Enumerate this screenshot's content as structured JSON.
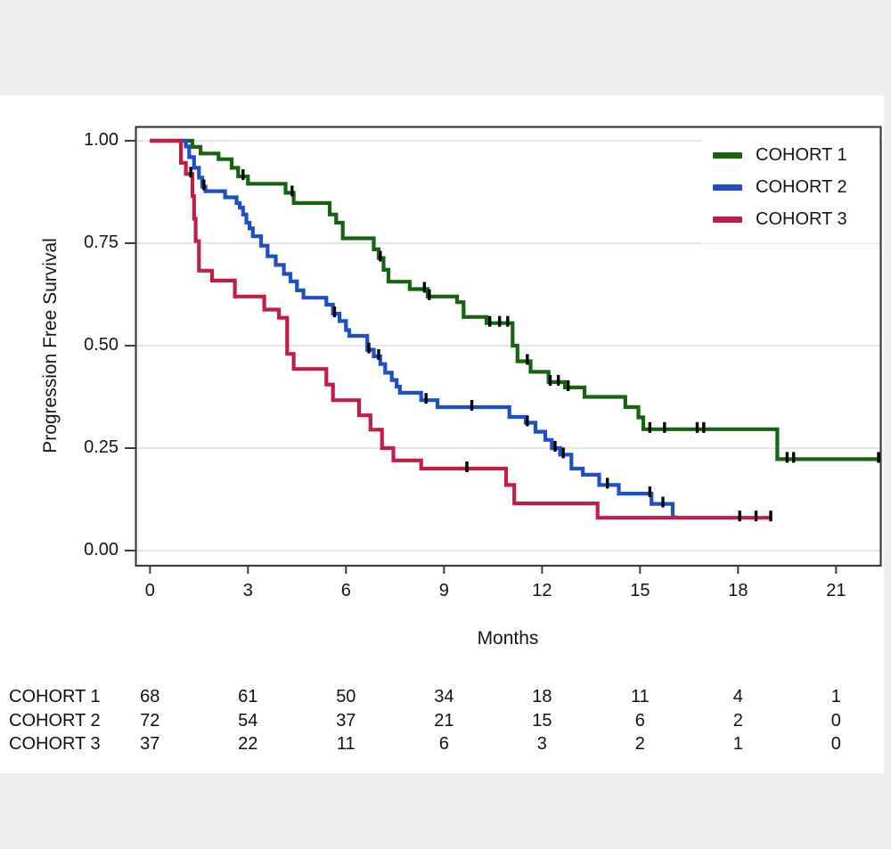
{
  "page": {
    "background": "#ededed",
    "panel_background": "#ffffff"
  },
  "chart_data": {
    "type": "line",
    "subtype": "kaplan-meier-step",
    "title": "",
    "xlabel": "Months",
    "ylabel": "Progression Free Survival",
    "xlim": [
      0,
      22.4
    ],
    "ylim": [
      0,
      1.0
    ],
    "grid": true,
    "grid_color": "#e5e5e5",
    "frame_color": "#3d3d3d",
    "censor_color": "#000000",
    "legend_position": "top-right-inside",
    "x_ticks": [
      0,
      3,
      6,
      9,
      12,
      15,
      18,
      21
    ],
    "x_tick_labels": [
      "0",
      "3",
      "6",
      "9",
      "12",
      "15",
      "18",
      "21"
    ],
    "y_ticks": [
      1.0,
      0.75,
      0.5,
      0.25,
      0.0
    ],
    "y_tick_labels": [
      "1.00",
      "0.75",
      "0.50",
      "0.25",
      "0.00"
    ],
    "series": [
      {
        "name": "COHORT 1",
        "color": "#166312",
        "start": [
          0,
          1.0
        ],
        "steps": [
          [
            1.3,
            0.985
          ],
          [
            1.55,
            0.969
          ],
          [
            2.1,
            0.955
          ],
          [
            2.5,
            0.934
          ],
          [
            2.7,
            0.913
          ],
          [
            3.0,
            0.895
          ],
          [
            4.15,
            0.873
          ],
          [
            4.4,
            0.848
          ],
          [
            5.5,
            0.82
          ],
          [
            5.7,
            0.8
          ],
          [
            5.9,
            0.762
          ],
          [
            6.85,
            0.735
          ],
          [
            7.0,
            0.714
          ],
          [
            7.15,
            0.685
          ],
          [
            7.3,
            0.656
          ],
          [
            7.95,
            0.638
          ],
          [
            8.5,
            0.62
          ],
          [
            9.4,
            0.606
          ],
          [
            9.6,
            0.57
          ],
          [
            10.3,
            0.555
          ],
          [
            11.1,
            0.5
          ],
          [
            11.25,
            0.462
          ],
          [
            11.65,
            0.436
          ],
          [
            12.2,
            0.411
          ],
          [
            12.7,
            0.398
          ],
          [
            13.3,
            0.375
          ],
          [
            14.55,
            0.35
          ],
          [
            14.95,
            0.325
          ],
          [
            15.1,
            0.296
          ],
          [
            19.2,
            0.223
          ]
        ],
        "end_month": 22.37,
        "censor_months": [
          2.85,
          4.35,
          7.05,
          8.4,
          8.55,
          10.4,
          10.7,
          10.95,
          11.55,
          12.25,
          12.5,
          12.8,
          15.3,
          15.75,
          16.75,
          16.95,
          19.5,
          19.7,
          22.3
        ]
      },
      {
        "name": "COHORT 2",
        "color": "#1f4ec6",
        "start": [
          0,
          1.0
        ],
        "steps": [
          [
            1.1,
            0.986
          ],
          [
            1.2,
            0.96
          ],
          [
            1.35,
            0.934
          ],
          [
            1.5,
            0.91
          ],
          [
            1.6,
            0.888
          ],
          [
            1.7,
            0.877
          ],
          [
            2.3,
            0.862
          ],
          [
            2.65,
            0.848
          ],
          [
            2.75,
            0.837
          ],
          [
            2.85,
            0.82
          ],
          [
            2.95,
            0.8
          ],
          [
            3.05,
            0.786
          ],
          [
            3.15,
            0.767
          ],
          [
            3.4,
            0.744
          ],
          [
            3.6,
            0.718
          ],
          [
            3.85,
            0.697
          ],
          [
            4.1,
            0.675
          ],
          [
            4.3,
            0.657
          ],
          [
            4.5,
            0.635
          ],
          [
            4.7,
            0.617
          ],
          [
            5.4,
            0.6
          ],
          [
            5.6,
            0.578
          ],
          [
            5.8,
            0.56
          ],
          [
            6.0,
            0.538
          ],
          [
            6.1,
            0.524
          ],
          [
            6.65,
            0.49
          ],
          [
            6.85,
            0.474
          ],
          [
            7.05,
            0.455
          ],
          [
            7.2,
            0.434
          ],
          [
            7.4,
            0.416
          ],
          [
            7.55,
            0.4
          ],
          [
            7.65,
            0.385
          ],
          [
            8.3,
            0.367
          ],
          [
            8.8,
            0.35
          ],
          [
            11.0,
            0.326
          ],
          [
            11.5,
            0.312
          ],
          [
            11.8,
            0.29
          ],
          [
            12.1,
            0.27
          ],
          [
            12.3,
            0.25
          ],
          [
            12.55,
            0.234
          ],
          [
            12.9,
            0.2
          ],
          [
            13.25,
            0.185
          ],
          [
            13.75,
            0.16
          ],
          [
            14.35,
            0.139
          ],
          [
            15.35,
            0.114
          ],
          [
            16.0,
            0.081
          ]
        ],
        "end_month": 16.15,
        "censor_months": [
          1.65,
          5.65,
          6.7,
          7.0,
          8.45,
          9.85,
          11.55,
          12.4,
          12.65,
          14.0,
          15.3,
          15.7
        ]
      },
      {
        "name": "COHORT 3",
        "color": "#c01e46",
        "start": [
          0,
          1.0
        ],
        "steps": [
          [
            0.95,
            0.946
          ],
          [
            1.1,
            0.919
          ],
          [
            1.3,
            0.865
          ],
          [
            1.35,
            0.81
          ],
          [
            1.4,
            0.755
          ],
          [
            1.5,
            0.683
          ],
          [
            1.9,
            0.659
          ],
          [
            2.6,
            0.62
          ],
          [
            3.5,
            0.588
          ],
          [
            3.95,
            0.568
          ],
          [
            4.2,
            0.48
          ],
          [
            4.4,
            0.443
          ],
          [
            5.4,
            0.405
          ],
          [
            5.6,
            0.367
          ],
          [
            6.4,
            0.33
          ],
          [
            6.75,
            0.295
          ],
          [
            7.1,
            0.25
          ],
          [
            7.45,
            0.22
          ],
          [
            8.3,
            0.2
          ],
          [
            10.9,
            0.16
          ],
          [
            11.15,
            0.115
          ],
          [
            13.7,
            0.08
          ]
        ],
        "end_month": 19.03,
        "censor_months": [
          1.25,
          9.7,
          18.05,
          18.55,
          19.0
        ]
      }
    ]
  },
  "legend": {
    "items": [
      {
        "label": "COHORT 1",
        "color": "#166312"
      },
      {
        "label": "COHORT 2",
        "color": "#1f4ec6"
      },
      {
        "label": "COHORT 3",
        "color": "#c01e46"
      }
    ]
  },
  "risk_table": {
    "rows": [
      {
        "label": "COHORT 1",
        "counts": [
          "68",
          "61",
          "50",
          "34",
          "18",
          "11",
          "4",
          "1"
        ]
      },
      {
        "label": "COHORT 2",
        "counts": [
          "72",
          "54",
          "37",
          "21",
          "15",
          "6",
          "2",
          "0"
        ]
      },
      {
        "label": "COHORT 3",
        "counts": [
          "37",
          "22",
          "11",
          "6",
          "3",
          "2",
          "1",
          "0"
        ]
      }
    ]
  }
}
